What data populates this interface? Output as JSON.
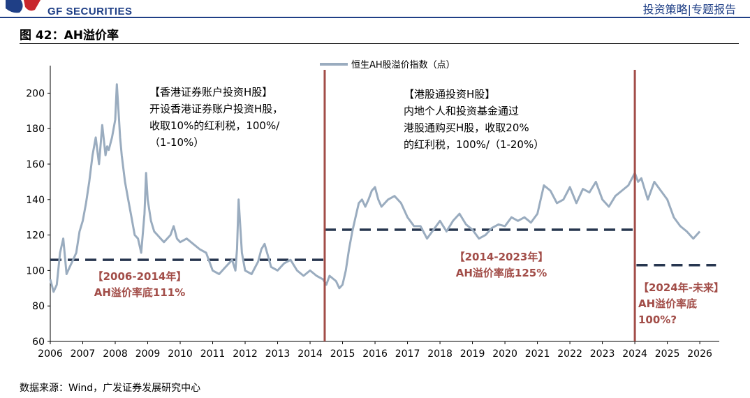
{
  "header": {
    "logo_text": "GF SECURITIES",
    "report_type": "投资策略|专题报告"
  },
  "figure": {
    "title": "图 42：AH溢价率",
    "source": "数据来源：Wind，广发证券发展研究中心"
  },
  "colors": {
    "series": "#9aacbf",
    "divider": "#a24d48",
    "floor": "#27364f",
    "annotation_red": "#a24d48",
    "brand_blue": "#1f3f86"
  },
  "chart_data": {
    "type": "line",
    "title": "AH溢价率",
    "legend": "恒生AH股溢价指数（点）",
    "legend_position": "top-center",
    "x_ticks": [
      "2006",
      "2007",
      "2008",
      "2009",
      "2010",
      "2011",
      "2012",
      "2013",
      "2014",
      "2015",
      "2016",
      "2017",
      "2018",
      "2019",
      "2020",
      "2021",
      "2022",
      "2023",
      "2024",
      "2025",
      "2026"
    ],
    "y_ticks": [
      "60",
      "80",
      "100",
      "120",
      "140",
      "160",
      "180",
      "200"
    ],
    "ylim": [
      60,
      210
    ],
    "xlim": [
      2006,
      2026.6
    ],
    "series": [
      {
        "name": "恒生AH股溢价指数（点）",
        "x": [
          2006.0,
          2006.1,
          2006.2,
          2006.3,
          2006.4,
          2006.5,
          2006.6,
          2006.7,
          2006.8,
          2006.9,
          2007.0,
          2007.1,
          2007.2,
          2007.3,
          2007.4,
          2007.5,
          2007.6,
          2007.7,
          2007.75,
          2007.8,
          2007.9,
          2008.0,
          2008.05,
          2008.1,
          2008.15,
          2008.2,
          2008.3,
          2008.4,
          2008.5,
          2008.6,
          2008.7,
          2008.8,
          2008.9,
          2008.95,
          2009.0,
          2009.1,
          2009.2,
          2009.3,
          2009.4,
          2009.5,
          2009.6,
          2009.7,
          2009.8,
          2009.9,
          2010.0,
          2010.2,
          2010.4,
          2010.6,
          2010.8,
          2011.0,
          2011.2,
          2011.4,
          2011.6,
          2011.7,
          2011.75,
          2011.8,
          2011.9,
          2012.0,
          2012.2,
          2012.4,
          2012.5,
          2012.6,
          2012.8,
          2013.0,
          2013.2,
          2013.4,
          2013.6,
          2013.8,
          2014.0,
          2014.2,
          2014.4,
          2014.5,
          2014.6,
          2014.8,
          2014.9,
          2015.0,
          2015.1,
          2015.2,
          2015.3,
          2015.4,
          2015.5,
          2015.6,
          2015.7,
          2015.8,
          2015.9,
          2016.0,
          2016.1,
          2016.2,
          2016.4,
          2016.6,
          2016.8,
          2017.0,
          2017.2,
          2017.4,
          2017.6,
          2017.8,
          2018.0,
          2018.2,
          2018.4,
          2018.6,
          2018.8,
          2019.0,
          2019.2,
          2019.4,
          2019.6,
          2019.8,
          2020.0,
          2020.2,
          2020.4,
          2020.6,
          2020.8,
          2021.0,
          2021.1,
          2021.2,
          2021.4,
          2021.6,
          2021.8,
          2022.0,
          2022.2,
          2022.4,
          2022.6,
          2022.8,
          2023.0,
          2023.2,
          2023.4,
          2023.6,
          2023.8,
          2024.0,
          2024.1,
          2024.2,
          2024.3,
          2024.4,
          2024.6,
          2024.8,
          2025.0,
          2025.2,
          2025.4,
          2025.6,
          2025.8,
          2026.0
        ],
        "values": [
          95,
          88,
          92,
          110,
          118,
          98,
          102,
          106,
          110,
          122,
          128,
          138,
          150,
          165,
          175,
          160,
          182,
          165,
          170,
          168,
          175,
          185,
          205,
          190,
          175,
          165,
          150,
          140,
          130,
          120,
          118,
          110,
          132,
          155,
          140,
          128,
          122,
          120,
          118,
          116,
          118,
          120,
          125,
          118,
          116,
          118,
          115,
          112,
          110,
          100,
          98,
          102,
          106,
          100,
          112,
          140,
          110,
          100,
          98,
          105,
          112,
          115,
          102,
          100,
          104,
          106,
          100,
          97,
          100,
          97,
          95,
          92,
          97,
          94,
          90,
          92,
          100,
          112,
          122,
          130,
          138,
          140,
          136,
          140,
          145,
          147,
          140,
          136,
          140,
          142,
          138,
          130,
          125,
          125,
          118,
          123,
          128,
          122,
          128,
          132,
          126,
          123,
          118,
          120,
          124,
          126,
          125,
          130,
          128,
          130,
          127,
          132,
          140,
          148,
          145,
          138,
          140,
          147,
          138,
          146,
          144,
          150,
          140,
          136,
          142,
          145,
          148,
          155,
          150,
          152,
          146,
          140,
          150,
          145,
          140,
          130,
          125,
          122,
          118,
          122
        ]
      }
    ],
    "reference_lines": [
      {
        "label": "2006-2014年 AH溢价率底111%",
        "y": 106,
        "x_range": [
          2006,
          2014.45
        ]
      },
      {
        "label": "2014-2023年 AH溢价率底125%",
        "y": 123,
        "x_range": [
          2014.45,
          2024.0
        ]
      },
      {
        "label": "2024年-未来 AH溢价率底100%?",
        "y": 103,
        "x_range": [
          2024.05,
          2026.5
        ]
      }
    ],
    "dividers": [
      2014.45,
      2024.0
    ],
    "annotations": {
      "left_box": [
        "【香港证券账户投资H股】",
        "开设香港证券账户投资H股，",
        "收取10%的红利税，100%/",
        "（1-10%）"
      ],
      "middle_box": [
        "【港股通投资H股】",
        "内地个人和投资基金通过",
        "港股通购买H股，收取20%",
        "的红利税，100%/（1-20%）"
      ],
      "floor_1": [
        "【2006-2014年】",
        "AH溢价率底111%"
      ],
      "floor_2": [
        "【2014-2023年】",
        "AH溢价率底125%"
      ],
      "floor_3": [
        "【2024年-未来】",
        "AH溢价率底",
        "100%?"
      ]
    }
  }
}
